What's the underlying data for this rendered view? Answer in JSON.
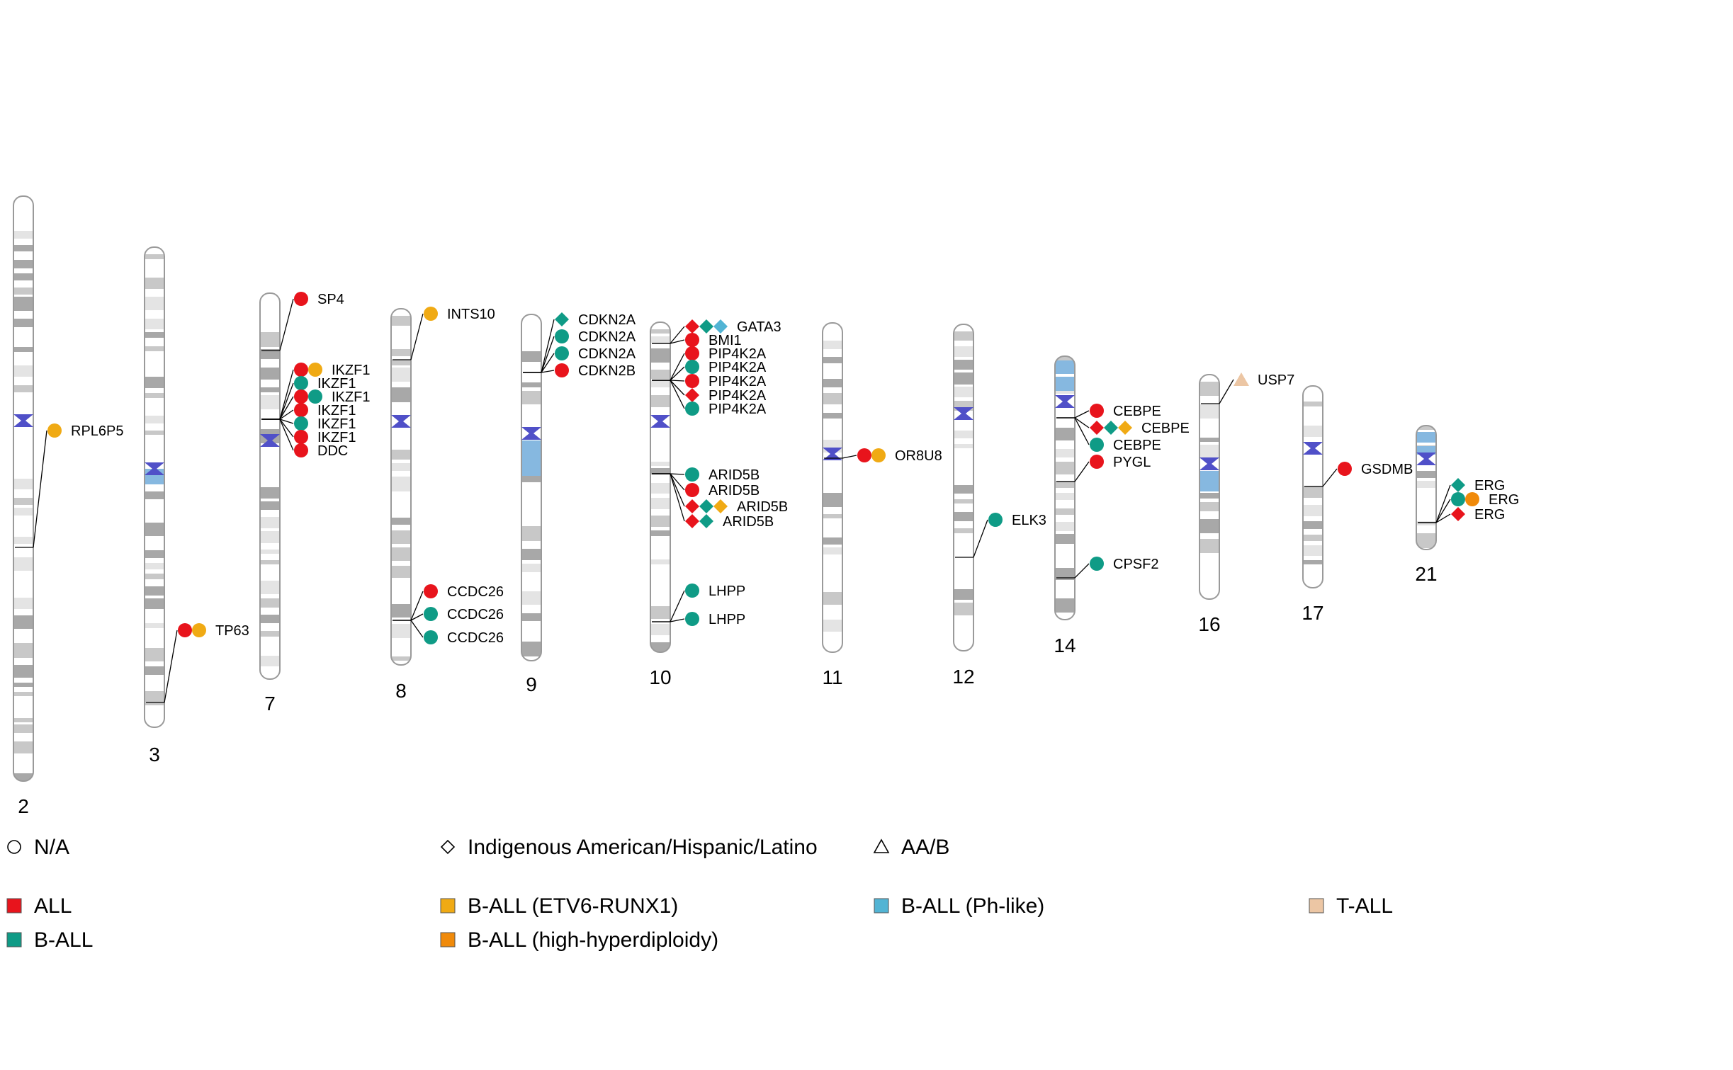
{
  "colors": {
    "ALL": "#e8141c",
    "B-ALL": "#0f9b86",
    "B-ALL (ETV6-RUNX1)": "#f0aa14",
    "B-ALL (high-hyperdiploidy)": "#f08a0a",
    "B-ALL (Ph-like)": "#52b4d4",
    "T-ALL": "#ecc6a4",
    "centromere": "#5050c8",
    "band_dark": "#a8a8a8",
    "band_mid": "#c8c8c8",
    "band_light": "#e4e4e4",
    "band_blue": "#86b8e0",
    "outline": "#9a9a9a"
  },
  "legend": {
    "shapes": [
      {
        "shape": "circle",
        "label": "N/A"
      },
      {
        "shape": "diamond",
        "label": "Indigenous American/Hispanic/Latino"
      },
      {
        "shape": "triangle",
        "label": "AA/B"
      }
    ],
    "subtypes": [
      {
        "key": "ALL",
        "label": "ALL"
      },
      {
        "key": "B-ALL",
        "label": "B-ALL"
      },
      {
        "key": "B-ALL (ETV6-RUNX1)",
        "label": "B-ALL (ETV6-RUNX1)"
      },
      {
        "key": "B-ALL (high-hyperdiploidy)",
        "label": "B-ALL (high-hyperdiploidy)"
      },
      {
        "key": "B-ALL (Ph-like)",
        "label": "B-ALL (Ph-like)"
      },
      {
        "key": "T-ALL",
        "label": "T-ALL"
      }
    ]
  },
  "chromosomes": [
    {
      "name": "2",
      "markers": [
        {
          "gene": "RPL6P5",
          "items": [
            {
              "shape": "circle",
              "subtype": "B-ALL (ETV6-RUNX1)"
            }
          ]
        }
      ]
    },
    {
      "name": "3",
      "markers": [
        {
          "gene": "TP63",
          "items": [
            {
              "shape": "circle",
              "subtype": "ALL"
            },
            {
              "shape": "circle",
              "subtype": "B-ALL (ETV6-RUNX1)"
            }
          ]
        }
      ]
    },
    {
      "name": "7",
      "markers": [
        {
          "gene": "SP4",
          "items": [
            {
              "shape": "circle",
              "subtype": "ALL"
            }
          ]
        },
        {
          "gene": "IKZF1",
          "items": [
            {
              "shape": "circle",
              "subtype": "ALL"
            },
            {
              "shape": "circle",
              "subtype": "B-ALL (ETV6-RUNX1)"
            }
          ]
        },
        {
          "gene": "IKZF1",
          "items": [
            {
              "shape": "circle",
              "subtype": "B-ALL"
            }
          ]
        },
        {
          "gene": "IKZF1",
          "items": [
            {
              "shape": "circle",
              "subtype": "ALL"
            },
            {
              "shape": "circle",
              "subtype": "B-ALL"
            }
          ]
        },
        {
          "gene": "IKZF1",
          "items": [
            {
              "shape": "circle",
              "subtype": "ALL"
            }
          ]
        },
        {
          "gene": "IKZF1",
          "items": [
            {
              "shape": "circle",
              "subtype": "B-ALL"
            }
          ]
        },
        {
          "gene": "IKZF1",
          "items": [
            {
              "shape": "circle",
              "subtype": "ALL"
            }
          ]
        },
        {
          "gene": "DDC",
          "items": [
            {
              "shape": "circle",
              "subtype": "ALL"
            }
          ]
        }
      ]
    },
    {
      "name": "8",
      "markers": [
        {
          "gene": "INTS10",
          "items": [
            {
              "shape": "circle",
              "subtype": "B-ALL (ETV6-RUNX1)"
            }
          ]
        },
        {
          "gene": "CCDC26",
          "items": [
            {
              "shape": "circle",
              "subtype": "ALL"
            }
          ]
        },
        {
          "gene": "CCDC26",
          "items": [
            {
              "shape": "circle",
              "subtype": "B-ALL"
            }
          ]
        },
        {
          "gene": "CCDC26",
          "items": [
            {
              "shape": "circle",
              "subtype": "B-ALL"
            }
          ]
        }
      ]
    },
    {
      "name": "9",
      "markers": [
        {
          "gene": "CDKN2A",
          "items": [
            {
              "shape": "diamond",
              "subtype": "B-ALL"
            }
          ]
        },
        {
          "gene": "CDKN2A",
          "items": [
            {
              "shape": "circle",
              "subtype": "B-ALL"
            }
          ]
        },
        {
          "gene": "CDKN2A",
          "items": [
            {
              "shape": "circle",
              "subtype": "B-ALL"
            }
          ]
        },
        {
          "gene": "CDKN2B",
          "items": [
            {
              "shape": "circle",
              "subtype": "ALL"
            }
          ]
        }
      ]
    },
    {
      "name": "10",
      "markers": [
        {
          "gene": "GATA3",
          "items": [
            {
              "shape": "diamond",
              "subtype": "ALL"
            },
            {
              "shape": "diamond",
              "subtype": "B-ALL"
            },
            {
              "shape": "diamond",
              "subtype": "B-ALL (Ph-like)"
            }
          ]
        },
        {
          "gene": "BMI1",
          "items": [
            {
              "shape": "circle",
              "subtype": "ALL"
            }
          ]
        },
        {
          "gene": "PIP4K2A",
          "items": [
            {
              "shape": "circle",
              "subtype": "ALL"
            }
          ]
        },
        {
          "gene": "PIP4K2A",
          "items": [
            {
              "shape": "circle",
              "subtype": "B-ALL"
            }
          ]
        },
        {
          "gene": "PIP4K2A",
          "items": [
            {
              "shape": "circle",
              "subtype": "ALL"
            }
          ]
        },
        {
          "gene": "PIP4K2A",
          "items": [
            {
              "shape": "diamond",
              "subtype": "ALL"
            }
          ]
        },
        {
          "gene": "PIP4K2A",
          "items": [
            {
              "shape": "circle",
              "subtype": "B-ALL"
            }
          ]
        },
        {
          "gene": "ARID5B",
          "items": [
            {
              "shape": "circle",
              "subtype": "B-ALL"
            }
          ]
        },
        {
          "gene": "ARID5B",
          "items": [
            {
              "shape": "circle",
              "subtype": "ALL"
            }
          ]
        },
        {
          "gene": "ARID5B",
          "items": [
            {
              "shape": "diamond",
              "subtype": "ALL"
            },
            {
              "shape": "diamond",
              "subtype": "B-ALL"
            },
            {
              "shape": "diamond",
              "subtype": "B-ALL (ETV6-RUNX1)"
            }
          ]
        },
        {
          "gene": "ARID5B",
          "items": [
            {
              "shape": "diamond",
              "subtype": "ALL"
            },
            {
              "shape": "diamond",
              "subtype": "B-ALL"
            }
          ]
        },
        {
          "gene": "LHPP",
          "items": [
            {
              "shape": "circle",
              "subtype": "B-ALL"
            }
          ]
        },
        {
          "gene": "LHPP",
          "items": [
            {
              "shape": "circle",
              "subtype": "B-ALL"
            }
          ]
        }
      ]
    },
    {
      "name": "11",
      "markers": [
        {
          "gene": "OR8U8",
          "items": [
            {
              "shape": "circle",
              "subtype": "ALL"
            },
            {
              "shape": "circle",
              "subtype": "B-ALL (ETV6-RUNX1)"
            }
          ]
        }
      ]
    },
    {
      "name": "12",
      "markers": [
        {
          "gene": "ELK3",
          "items": [
            {
              "shape": "circle",
              "subtype": "B-ALL"
            }
          ]
        }
      ]
    },
    {
      "name": "14",
      "markers": [
        {
          "gene": "CEBPE",
          "items": [
            {
              "shape": "circle",
              "subtype": "ALL"
            }
          ]
        },
        {
          "gene": "CEBPE",
          "items": [
            {
              "shape": "diamond",
              "subtype": "ALL"
            },
            {
              "shape": "diamond",
              "subtype": "B-ALL"
            },
            {
              "shape": "diamond",
              "subtype": "B-ALL (ETV6-RUNX1)"
            }
          ]
        },
        {
          "gene": "CEBPE",
          "items": [
            {
              "shape": "circle",
              "subtype": "B-ALL"
            }
          ]
        },
        {
          "gene": "PYGL",
          "items": [
            {
              "shape": "circle",
              "subtype": "ALL"
            }
          ]
        },
        {
          "gene": "CPSF2",
          "items": [
            {
              "shape": "circle",
              "subtype": "B-ALL"
            }
          ]
        }
      ]
    },
    {
      "name": "16",
      "markers": [
        {
          "gene": "USP7",
          "items": [
            {
              "shape": "triangle",
              "subtype": "T-ALL"
            }
          ]
        }
      ]
    },
    {
      "name": "17",
      "markers": [
        {
          "gene": "GSDMB",
          "items": [
            {
              "shape": "circle",
              "subtype": "ALL"
            }
          ]
        }
      ]
    },
    {
      "name": "21",
      "markers": [
        {
          "gene": "ERG",
          "items": [
            {
              "shape": "diamond",
              "subtype": "B-ALL"
            }
          ]
        },
        {
          "gene": "ERG",
          "items": [
            {
              "shape": "circle",
              "subtype": "B-ALL"
            },
            {
              "shape": "circle",
              "subtype": "B-ALL (high-hyperdiploidy)"
            }
          ]
        },
        {
          "gene": "ERG",
          "items": [
            {
              "shape": "diamond",
              "subtype": "ALL"
            }
          ]
        }
      ]
    }
  ]
}
